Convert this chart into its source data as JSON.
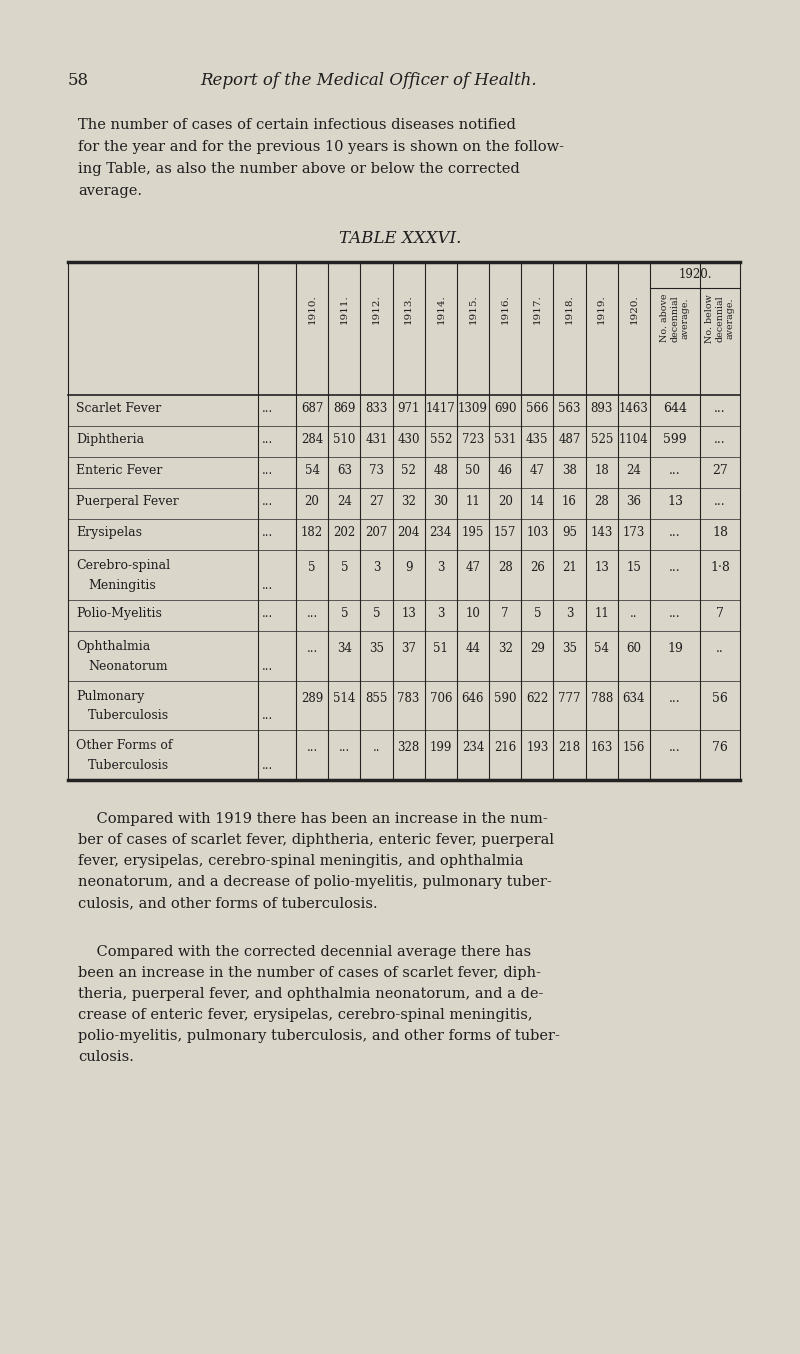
{
  "page_number": "58",
  "header_title": "Report of the Medical Officer of Health.",
  "intro_text": [
    "The number of cases of certain infectious diseases notified",
    "for the year and for the previous 10 years is shown on the follow-",
    "ing Table, as also the number above or below the corrected",
    "average."
  ],
  "table_title": "TABLE XXXVI.",
  "col_years": [
    "1910.",
    "1911.",
    "1912.",
    "1913.",
    "1914.",
    "1915.",
    "1916.",
    "1917.",
    "1918.",
    "1919.",
    "1920."
  ],
  "rows": [
    {
      "disease_line1": "Scarlet Fever",
      "disease_line2": "",
      "suffix": "...",
      "values": [
        "687",
        "869",
        "833",
        "971",
        "1417",
        "1309",
        "690",
        "566",
        "563",
        "893",
        "1463"
      ],
      "above": "644",
      "below": "..."
    },
    {
      "disease_line1": "Diphtheria",
      "disease_line2": "",
      "suffix": "...",
      "values": [
        "284",
        "510",
        "431",
        "430",
        "552",
        "723",
        "531",
        "435",
        "487",
        "525",
        "1104"
      ],
      "above": "599",
      "below": "..."
    },
    {
      "disease_line1": "Enteric Fever",
      "disease_line2": "",
      "suffix": "...",
      "values": [
        "54",
        "63",
        "73",
        "52",
        "48",
        "50",
        "46",
        "47",
        "38",
        "18",
        "24"
      ],
      "above": "...",
      "below": "27"
    },
    {
      "disease_line1": "Puerperal Fever",
      "disease_line2": "",
      "suffix": "...",
      "values": [
        "20",
        "24",
        "27",
        "32",
        "30",
        "11",
        "20",
        "14",
        "16",
        "28",
        "36"
      ],
      "above": "13",
      "below": "..."
    },
    {
      "disease_line1": "Erysipelas",
      "disease_line2": "",
      "suffix": "...",
      "values": [
        "182",
        "202",
        "207",
        "204",
        "234",
        "195",
        "157",
        "103",
        "95",
        "143",
        "173"
      ],
      "above": "...",
      "below": "18"
    },
    {
      "disease_line1": "Cerebro-spinal",
      "disease_line2": "Meningitis",
      "suffix": "...",
      "values": [
        "5",
        "5",
        "3",
        "9",
        "3",
        "47",
        "28",
        "26",
        "21",
        "13",
        "15"
      ],
      "above": "...",
      "below": "1·8"
    },
    {
      "disease_line1": "Polio-Myelitis",
      "disease_line2": "",
      "suffix": "...",
      "values": [
        "...",
        "5",
        "5",
        "13",
        "3",
        "10",
        "7",
        "5",
        "3",
        "11",
        ".."
      ],
      "above": "...",
      "below": "7"
    },
    {
      "disease_line1": "Ophthalmia",
      "disease_line2": "Neonatorum",
      "suffix": "...",
      "values": [
        "...",
        "34",
        "35",
        "37",
        "51",
        "44",
        "32",
        "29",
        "35",
        "54",
        "60"
      ],
      "above": "19",
      "below": ".."
    },
    {
      "disease_line1": "Pulmonary",
      "disease_line2": "Tuberculosis",
      "suffix": "...",
      "values": [
        "289",
        "514",
        "855",
        "783",
        "706",
        "646",
        "590",
        "622",
        "777",
        "788",
        "634"
      ],
      "above": "...",
      "below": "56"
    },
    {
      "disease_line1": "Other Forms of",
      "disease_line2": "Tuberculosis",
      "suffix": "...",
      "values": [
        "...",
        "...",
        "..",
        "328",
        "199",
        "234",
        "216",
        "193",
        "218",
        "163",
        "156"
      ],
      "above": "...",
      "below": "76"
    }
  ],
  "footer_para1": [
    "    Compared with 1919 there has been an increase in the num-",
    "ber of cases of scarlet fever, diphtheria, enteric fever, puerperal",
    "fever, erysipelas, cerebro-spinal meningitis, and ophthalmia",
    "neonatorum, and a decrease of polio-myelitis, pulmonary tuber-",
    "culosis, and other forms of tuberculosis."
  ],
  "footer_para2": [
    "    Compared with the corrected decennial average there has",
    "been an increase in the number of cases of scarlet fever, diph-",
    "theria, puerperal fever, and ophthalmia neonatorum, and a de-",
    "crease of enteric fever, erysipelas, cerebro-spinal meningitis,",
    "polio-myelitis, pulmonary tuberculosis, and other forms of tuber-",
    "culosis."
  ],
  "bg_color": "#dbd6ca",
  "text_color": "#1e1e1e",
  "line_color": "#222222"
}
